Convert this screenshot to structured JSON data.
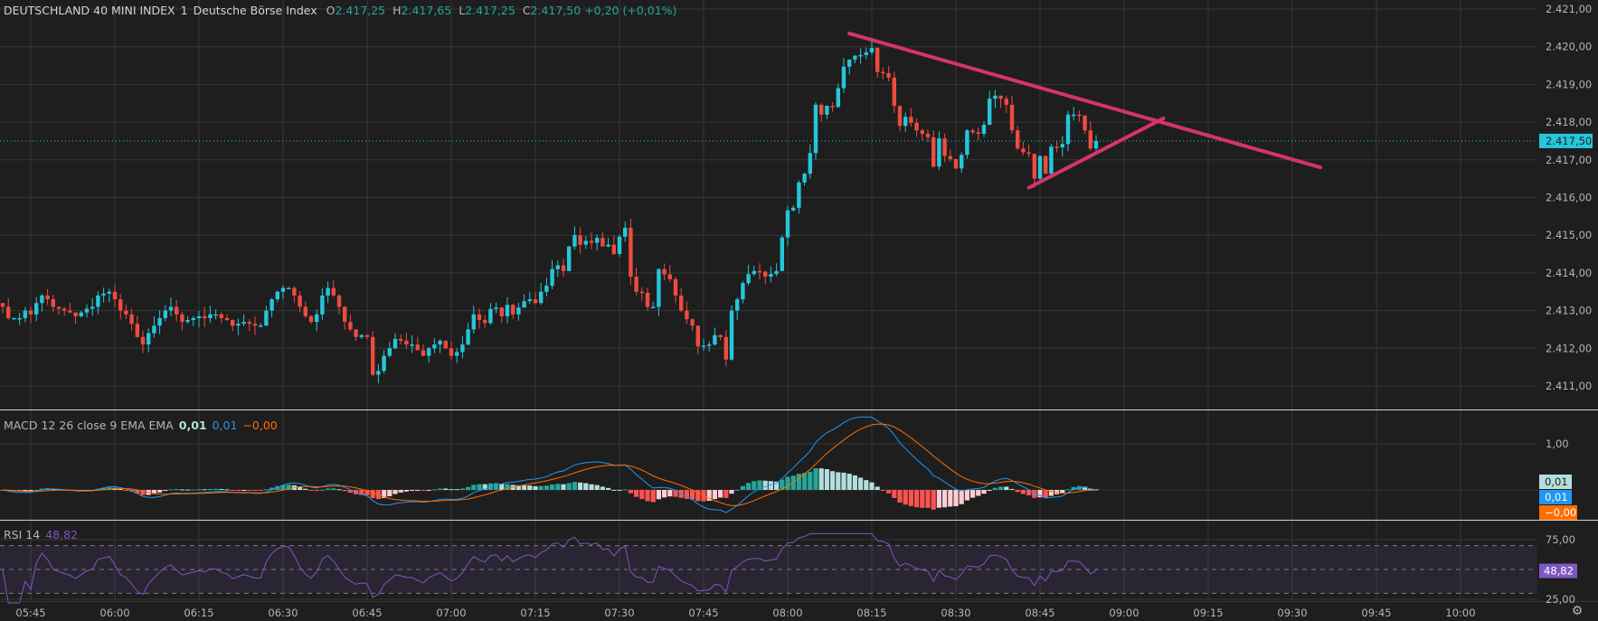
{
  "header": {
    "symbol": "DEUTSCHLAND 40 MINI INDEX",
    "interval": "1",
    "exchange": "Deutsche Börse Index",
    "open_key": "O",
    "open": "2.417,25",
    "high_key": "H",
    "high": "2.417,65",
    "low_key": "L",
    "low": "2.417,25",
    "close_key": "C",
    "close": "2.417,50",
    "change": "+0,20 (+0,01%)"
  },
  "macd_legend": {
    "label": "MACD 12 26 close 9 EMA EMA",
    "hist": "0,01",
    "macd": "0,01",
    "signal": "−0,00"
  },
  "rsi_legend": {
    "label": "RSI 14",
    "value": "48,82"
  },
  "colors": {
    "background": "#1e1e1e",
    "grid": "#363636",
    "up": "#26c6da",
    "down": "#ef4b3f",
    "trendline": "#d6336c",
    "macd": "#2196f3",
    "signal": "#ff6d00",
    "hist_up_grow": "#26a69a",
    "hist_up_fall": "#b2dfdb",
    "hist_dn_grow": "#ffcdd2",
    "hist_dn_fall": "#ff5252",
    "rsi": "#7e57c2",
    "price_badge": "#26c6da"
  },
  "chart_data": {
    "type": "candlestick",
    "first_candle_time": "05:40",
    "interval_minutes": 1,
    "closes": [
      2413.1,
      2412.8,
      2412.8,
      2412.8,
      2413.0,
      2412.9,
      2413.2,
      2413.4,
      2413.3,
      2413.1,
      2413.05,
      2413.0,
      2412.95,
      2412.85,
      2412.95,
      2413.05,
      2413.1,
      2413.4,
      2413.45,
      2413.5,
      2413.3,
      2413.0,
      2412.9,
      2412.65,
      2412.3,
      2412.1,
      2412.4,
      2412.6,
      2412.8,
      2413.0,
      2413.1,
      2412.9,
      2412.7,
      2412.75,
      2412.8,
      2412.85,
      2412.8,
      2412.9,
      2412.9,
      2412.8,
      2412.75,
      2412.6,
      2412.65,
      2412.7,
      2412.65,
      2412.6,
      2412.6,
      2413.0,
      2413.3,
      2413.5,
      2413.6,
      2413.6,
      2413.4,
      2413.1,
      2412.85,
      2412.7,
      2412.9,
      2413.4,
      2413.6,
      2413.4,
      2413.1,
      2412.7,
      2412.5,
      2412.3,
      2412.35,
      2412.3,
      2411.3,
      2411.4,
      2411.8,
      2412.0,
      2412.25,
      2412.2,
      2412.1,
      2412.1,
      2411.95,
      2411.8,
      2412.0,
      2412.1,
      2412.2,
      2412.0,
      2411.8,
      2411.9,
      2412.1,
      2412.5,
      2412.9,
      2412.75,
      2412.67,
      2413.04,
      2413.08,
      2412.85,
      2413.15,
      2412.9,
      2413.08,
      2413.25,
      2413.3,
      2413.2,
      2413.5,
      2413.66,
      2414.1,
      2414.2,
      2414.05,
      2414.7,
      2415.0,
      2414.75,
      2414.85,
      2414.8,
      2414.93,
      2414.7,
      2414.75,
      2414.5,
      2414.96,
      2415.2,
      2413.9,
      2413.5,
      2413.47,
      2413.1,
      2413.1,
      2414.1,
      2413.96,
      2413.83,
      2413.4,
      2413.0,
      2412.77,
      2412.6,
      2412.05,
      2412.07,
      2412.1,
      2412.35,
      2412.3,
      2411.7,
      2413.0,
      2413.3,
      2413.73,
      2413.97,
      2414.05,
      2414.03,
      2413.9,
      2413.97,
      2414.05,
      2414.94,
      2415.66,
      2415.73,
      2416.4,
      2416.63,
      2417.18,
      2418.46,
      2418.2,
      2418.43,
      2418.4,
      2418.9,
      2419.47,
      2419.66,
      2419.76,
      2419.78,
      2419.85,
      2419.97,
      2419.33,
      2419.3,
      2419.18,
      2418.43,
      2417.9,
      2418.14,
      2417.98,
      2417.78,
      2417.69,
      2417.6,
      2416.82,
      2417.57,
      2417.1,
      2417.02,
      2416.77,
      2417.13,
      2417.78,
      2417.73,
      2417.69,
      2417.93,
      2418.62,
      2418.7,
      2418.62,
      2418.46,
      2417.78,
      2417.3,
      2417.2,
      2417.16,
      2416.5,
      2417.1,
      2416.63,
      2417.35,
      2417.33,
      2417.42,
      2418.2,
      2418.2,
      2418.17,
      2417.78,
      2417.3,
      2417.5
    ],
    "last_price": 2417.5,
    "last_price_label": "2.417,50",
    "price_range": [
      2410.5,
      2421.2
    ],
    "price_ticks": [
      {
        "value": 2421,
        "label": "2.421,00"
      },
      {
        "value": 2420,
        "label": "2.420,00"
      },
      {
        "value": 2419,
        "label": "2.419,00"
      },
      {
        "value": 2418,
        "label": "2.418,00"
      },
      {
        "value": 2417,
        "label": "2.417,00"
      },
      {
        "value": 2416,
        "label": "2.416,00"
      },
      {
        "value": 2415,
        "label": "2.415,00"
      },
      {
        "value": 2414,
        "label": "2.414,00"
      },
      {
        "value": 2413,
        "label": "2.413,00"
      },
      {
        "value": 2412,
        "label": "2.412,00"
      },
      {
        "value": 2411,
        "label": "2.411,00"
      }
    ],
    "time_ticks": [
      "05:45",
      "06:00",
      "06:15",
      "06:30",
      "06:45",
      "07:00",
      "07:15",
      "07:30",
      "07:45",
      "08:00",
      "08:15",
      "08:30",
      "08:45",
      "09:00",
      "09:15",
      "09:30",
      "09:45",
      "10:00"
    ],
    "trendlines": [
      {
        "name": "descending-resistance",
        "from": {
          "time": "08:11",
          "price": 2420.35
        },
        "to": {
          "time": "09:35",
          "price": 2416.8
        }
      },
      {
        "name": "ascending-support",
        "from": {
          "time": "08:43",
          "price": 2416.26
        },
        "to": {
          "time": "09:07",
          "price": 2418.1
        }
      }
    ],
    "macd": {
      "fast": 12,
      "slow": 26,
      "signal": 9,
      "ticks": [
        {
          "value": 1,
          "label": "1,00"
        }
      ],
      "badges": {
        "hist": "0,01",
        "macd": "0,01",
        "signal": "−0,00"
      }
    },
    "rsi": {
      "length": 14,
      "ticks": [
        {
          "value": 75,
          "label": "75,00"
        },
        {
          "value": 25,
          "label": "25,00"
        }
      ],
      "bands": [
        70,
        50,
        30
      ],
      "badge": "48,82"
    }
  }
}
